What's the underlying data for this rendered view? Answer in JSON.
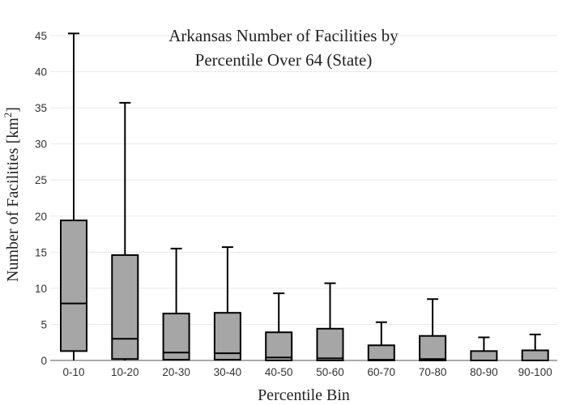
{
  "chart_data": {
    "type": "box",
    "title_lines": [
      "Arkansas Number of Facilities by",
      "Percentile Over 64 (State)"
    ],
    "xlabel": "Percentile Bin",
    "ylabel": "Number of Facilities  [km",
    "ylabel_sup": "2",
    "ylabel_close": "]",
    "ylim": [
      0,
      45
    ],
    "yticks": [
      0,
      5,
      10,
      15,
      20,
      25,
      30,
      35,
      40,
      45
    ],
    "grid": true,
    "box_color": "#a6a6a6",
    "categories": [
      "0-10",
      "10-20",
      "20-30",
      "30-40",
      "40-50",
      "50-60",
      "60-70",
      "70-80",
      "80-90",
      "90-100"
    ],
    "boxes": [
      {
        "min": 0,
        "q1": 1.3,
        "median": 7.9,
        "q3": 19.4,
        "max": 45.3
      },
      {
        "min": 0,
        "q1": 0.2,
        "median": 3.0,
        "q3": 14.6,
        "max": 35.7
      },
      {
        "min": 0,
        "q1": 0.1,
        "median": 1.1,
        "q3": 6.5,
        "max": 15.5
      },
      {
        "min": 0,
        "q1": 0.1,
        "median": 1.0,
        "q3": 6.6,
        "max": 15.7
      },
      {
        "min": 0,
        "q1": 0.0,
        "median": 0.4,
        "q3": 3.9,
        "max": 9.3
      },
      {
        "min": 0,
        "q1": 0.0,
        "median": 0.3,
        "q3": 4.4,
        "max": 10.7
      },
      {
        "min": 0,
        "q1": 0.0,
        "median": 0.1,
        "q3": 2.1,
        "max": 5.3
      },
      {
        "min": 0,
        "q1": 0.0,
        "median": 0.2,
        "q3": 3.4,
        "max": 8.5
      },
      {
        "min": 0,
        "q1": 0.0,
        "median": 0.0,
        "q3": 1.3,
        "max": 3.2
      },
      {
        "min": 0,
        "q1": 0.0,
        "median": 0.0,
        "q3": 1.4,
        "max": 3.6
      }
    ]
  }
}
